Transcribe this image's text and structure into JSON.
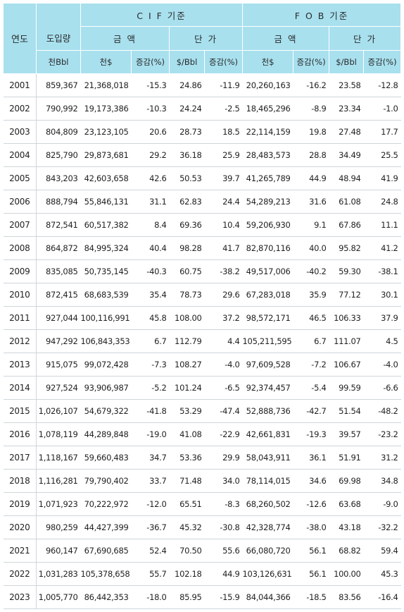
{
  "header": {
    "year": "연도",
    "volume": "도입량",
    "cif": "C I F 기준",
    "fob": "F O B 기준",
    "amount": "금 액",
    "unit_price": "단 가",
    "unit_bbl": "천Bbl",
    "unit_thousand_usd": "천$",
    "unit_change": "증감(%)",
    "unit_usd_per_bbl": "$/Bbl"
  },
  "rows": [
    {
      "year": "2001",
      "volume": "859,367",
      "cif_amount": "21,368,018",
      "cif_amount_chg": "-15.3",
      "cif_price": "24.86",
      "cif_price_chg": "-11.9",
      "fob_amount": "20,260,163",
      "fob_amount_chg": "-16.2",
      "fob_price": "23.58",
      "fob_price_chg": "-12.8"
    },
    {
      "year": "2002",
      "volume": "790,992",
      "cif_amount": "19,173,386",
      "cif_amount_chg": "-10.3",
      "cif_price": "24.24",
      "cif_price_chg": "-2.5",
      "fob_amount": "18,465,296",
      "fob_amount_chg": "-8.9",
      "fob_price": "23.34",
      "fob_price_chg": "-1.0"
    },
    {
      "year": "2003",
      "volume": "804,809",
      "cif_amount": "23,123,105",
      "cif_amount_chg": "20.6",
      "cif_price": "28.73",
      "cif_price_chg": "18.5",
      "fob_amount": "22,114,159",
      "fob_amount_chg": "19.8",
      "fob_price": "27.48",
      "fob_price_chg": "17.7"
    },
    {
      "year": "2004",
      "volume": "825,790",
      "cif_amount": "29,873,681",
      "cif_amount_chg": "29.2",
      "cif_price": "36.18",
      "cif_price_chg": "25.9",
      "fob_amount": "28,483,573",
      "fob_amount_chg": "28.8",
      "fob_price": "34.49",
      "fob_price_chg": "25.5"
    },
    {
      "year": "2005",
      "volume": "843,203",
      "cif_amount": "42,603,658",
      "cif_amount_chg": "42.6",
      "cif_price": "50.53",
      "cif_price_chg": "39.7",
      "fob_amount": "41,265,789",
      "fob_amount_chg": "44.9",
      "fob_price": "48.94",
      "fob_price_chg": "41.9"
    },
    {
      "year": "2006",
      "volume": "888,794",
      "cif_amount": "55,846,131",
      "cif_amount_chg": "31.1",
      "cif_price": "62.83",
      "cif_price_chg": "24.4",
      "fob_amount": "54,289,213",
      "fob_amount_chg": "31.6",
      "fob_price": "61.08",
      "fob_price_chg": "24.8"
    },
    {
      "year": "2007",
      "volume": "872,541",
      "cif_amount": "60,517,382",
      "cif_amount_chg": "8.4",
      "cif_price": "69.36",
      "cif_price_chg": "10.4",
      "fob_amount": "59,206,930",
      "fob_amount_chg": "9.1",
      "fob_price": "67.86",
      "fob_price_chg": "11.1"
    },
    {
      "year": "2008",
      "volume": "864,872",
      "cif_amount": "84,995,324",
      "cif_amount_chg": "40.4",
      "cif_price": "98.28",
      "cif_price_chg": "41.7",
      "fob_amount": "82,870,116",
      "fob_amount_chg": "40.0",
      "fob_price": "95.82",
      "fob_price_chg": "41.2"
    },
    {
      "year": "2009",
      "volume": "835,085",
      "cif_amount": "50,735,145",
      "cif_amount_chg": "-40.3",
      "cif_price": "60.75",
      "cif_price_chg": "-38.2",
      "fob_amount": "49,517,006",
      "fob_amount_chg": "-40.2",
      "fob_price": "59.30",
      "fob_price_chg": "-38.1"
    },
    {
      "year": "2010",
      "volume": "872,415",
      "cif_amount": "68,683,539",
      "cif_amount_chg": "35.4",
      "cif_price": "78.73",
      "cif_price_chg": "29.6",
      "fob_amount": "67,283,018",
      "fob_amount_chg": "35.9",
      "fob_price": "77.12",
      "fob_price_chg": "30.1"
    },
    {
      "year": "2011",
      "volume": "927,044",
      "cif_amount": "100,116,991",
      "cif_amount_chg": "45.8",
      "cif_price": "108.00",
      "cif_price_chg": "37.2",
      "fob_amount": "98,572,171",
      "fob_amount_chg": "46.5",
      "fob_price": "106.33",
      "fob_price_chg": "37.9"
    },
    {
      "year": "2012",
      "volume": "947,292",
      "cif_amount": "106,843,353",
      "cif_amount_chg": "6.7",
      "cif_price": "112.79",
      "cif_price_chg": "4.4",
      "fob_amount": "105,211,595",
      "fob_amount_chg": "6.7",
      "fob_price": "111.07",
      "fob_price_chg": "4.5"
    },
    {
      "year": "2013",
      "volume": "915,075",
      "cif_amount": "99,072,428",
      "cif_amount_chg": "-7.3",
      "cif_price": "108.27",
      "cif_price_chg": "-4.0",
      "fob_amount": "97,609,528",
      "fob_amount_chg": "-7.2",
      "fob_price": "106.67",
      "fob_price_chg": "-4.0"
    },
    {
      "year": "2014",
      "volume": "927,524",
      "cif_amount": "93,906,987",
      "cif_amount_chg": "-5.2",
      "cif_price": "101.24",
      "cif_price_chg": "-6.5",
      "fob_amount": "92,374,457",
      "fob_amount_chg": "-5.4",
      "fob_price": "99.59",
      "fob_price_chg": "-6.6"
    },
    {
      "year": "2015",
      "volume": "1,026,107",
      "cif_amount": "54,679,322",
      "cif_amount_chg": "-41.8",
      "cif_price": "53.29",
      "cif_price_chg": "-47.4",
      "fob_amount": "52,888,736",
      "fob_amount_chg": "-42.7",
      "fob_price": "51.54",
      "fob_price_chg": "-48.2"
    },
    {
      "year": "2016",
      "volume": "1,078,119",
      "cif_amount": "44,289,848",
      "cif_amount_chg": "-19.0",
      "cif_price": "41.08",
      "cif_price_chg": "-22.9",
      "fob_amount": "42,661,831",
      "fob_amount_chg": "-19.3",
      "fob_price": "39.57",
      "fob_price_chg": "-23.2"
    },
    {
      "year": "2017",
      "volume": "1,118,167",
      "cif_amount": "59,660,483",
      "cif_amount_chg": "34.7",
      "cif_price": "53.36",
      "cif_price_chg": "29.9",
      "fob_amount": "58,043,911",
      "fob_amount_chg": "36.1",
      "fob_price": "51.91",
      "fob_price_chg": "31.2"
    },
    {
      "year": "2018",
      "volume": "1,116,281",
      "cif_amount": "79,790,402",
      "cif_amount_chg": "33.7",
      "cif_price": "71.48",
      "cif_price_chg": "34.0",
      "fob_amount": "78,114,015",
      "fob_amount_chg": "34.6",
      "fob_price": "69.98",
      "fob_price_chg": "34.8"
    },
    {
      "year": "2019",
      "volume": "1,071,923",
      "cif_amount": "70,222,972",
      "cif_amount_chg": "-12.0",
      "cif_price": "65.51",
      "cif_price_chg": "-8.3",
      "fob_amount": "68,260,502",
      "fob_amount_chg": "-12.6",
      "fob_price": "63.68",
      "fob_price_chg": "-9.0"
    },
    {
      "year": "2020",
      "volume": "980,259",
      "cif_amount": "44,427,399",
      "cif_amount_chg": "-36.7",
      "cif_price": "45.32",
      "cif_price_chg": "-30.8",
      "fob_amount": "42,328,774",
      "fob_amount_chg": "-38.0",
      "fob_price": "43.18",
      "fob_price_chg": "-32.2"
    },
    {
      "year": "2021",
      "volume": "960,147",
      "cif_amount": "67,690,685",
      "cif_amount_chg": "52.4",
      "cif_price": "70.50",
      "cif_price_chg": "55.6",
      "fob_amount": "66,080,720",
      "fob_amount_chg": "56.1",
      "fob_price": "68.82",
      "fob_price_chg": "59.4"
    },
    {
      "year": "2022",
      "volume": "1,031,283",
      "cif_amount": "105,378,658",
      "cif_amount_chg": "55.7",
      "cif_price": "102.18",
      "cif_price_chg": "44.9",
      "fob_amount": "103,126,631",
      "fob_amount_chg": "56.1",
      "fob_price": "100.00",
      "fob_price_chg": "45.3"
    },
    {
      "year": "2023",
      "volume": "1,005,770",
      "cif_amount": "86,442,353",
      "cif_amount_chg": "-18.0",
      "cif_price": "85.95",
      "cif_price_chg": "-15.9",
      "fob_amount": "84,044,366",
      "fob_amount_chg": "-18.5",
      "fob_price": "83.56",
      "fob_price_chg": "-16.4"
    }
  ]
}
